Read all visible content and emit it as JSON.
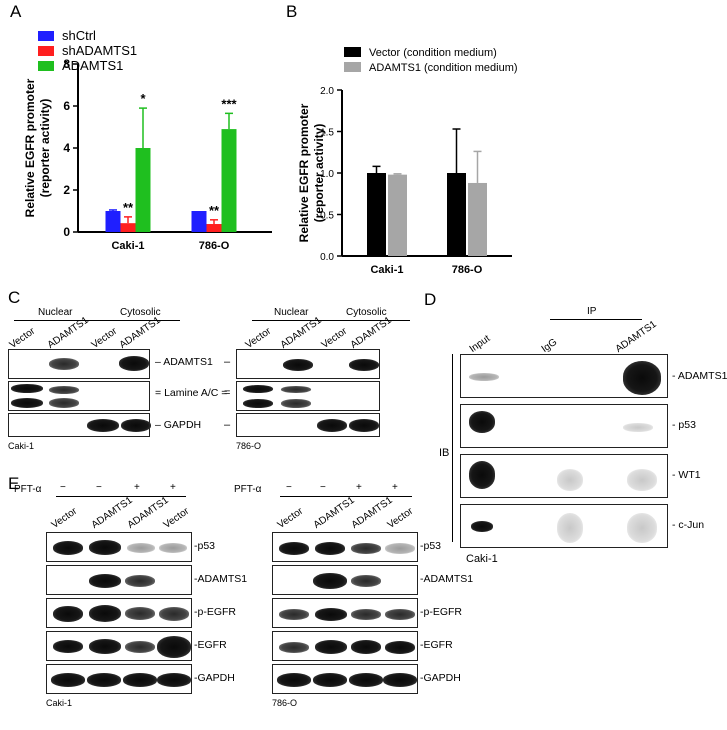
{
  "panels": {
    "A": "A",
    "B": "B",
    "C": "C",
    "D": "D",
    "E": "E"
  },
  "chart_data": [
    {
      "panel": "A",
      "type": "bar",
      "categories": [
        "Caki-1",
        "786-O"
      ],
      "series": [
        {
          "name": "shCtrl",
          "color": "#1f1fff",
          "values": [
            1.0,
            1.0
          ],
          "errors": [
            0.05,
            0.0
          ],
          "sig": [
            "",
            ""
          ]
        },
        {
          "name": "shADAMTS1",
          "color": "#ff1f1f",
          "values": [
            0.42,
            0.38
          ],
          "errors": [
            0.3,
            0.2
          ],
          "sig": [
            "**",
            "**"
          ]
        },
        {
          "name": "ADAMTS1",
          "color": "#1fbf1f",
          "values": [
            4.0,
            4.9
          ],
          "errors": [
            1.9,
            0.75
          ],
          "sig": [
            "*",
            "***"
          ]
        }
      ],
      "ylabel_line1": "Relative EGFR promoter",
      "ylabel_line2": "(reporter activity)",
      "ylim": [
        0,
        8
      ],
      "yticks": [
        "0",
        "2",
        "4",
        "6",
        "8"
      ],
      "legend": "top-left"
    },
    {
      "panel": "B",
      "type": "bar",
      "categories": [
        "Caki-1",
        "786-O"
      ],
      "series": [
        {
          "name": "Vector (condition medium)",
          "color": "#000000",
          "values": [
            1.0,
            1.0
          ],
          "errors": [
            0.08,
            0.53
          ]
        },
        {
          "name": "ADAMTS1 (condition medium)",
          "color": "#a6a6a6",
          "values": [
            0.98,
            0.88
          ],
          "errors": [
            0.01,
            0.38
          ]
        }
      ],
      "ylabel_line1": "Relative EGFR promoter",
      "ylabel_line2": "(reporter activity)",
      "ylim": [
        0,
        2.0
      ],
      "yticks": [
        "0.0",
        "0.5",
        "1.0",
        "1.5",
        "2.0"
      ],
      "legend": "top"
    }
  ],
  "blotC": {
    "groups": [
      "Nuclear",
      "Cytosolic"
    ],
    "lanes": [
      "Vector",
      "ADAMTS1",
      "Vector",
      "ADAMTS1"
    ],
    "markers": [
      "ADAMTS1",
      "Lamine A/C",
      "GAPDH"
    ],
    "cell_left": "Caki-1",
    "cell_right": "786-O"
  },
  "blotD": {
    "lanes": [
      "Input",
      "IgG",
      "ADAMTS1"
    ],
    "ip_label": "IP",
    "ib_label": "IB",
    "markers": [
      "ADAMTS1",
      "p53",
      "WT1",
      "c-Jun"
    ],
    "cell": "Caki-1"
  },
  "blotE": {
    "treatment": "PFT-α",
    "signs": [
      "−",
      "−",
      "+",
      "+"
    ],
    "lanes": [
      "Vector",
      "ADAMTS1",
      "ADAMTS1",
      "Vector"
    ],
    "markers": [
      "p53",
      "ADAMTS1",
      "p-EGFR",
      "EGFR",
      "GAPDH"
    ],
    "cell_left": "Caki-1",
    "cell_right": "786-O"
  }
}
